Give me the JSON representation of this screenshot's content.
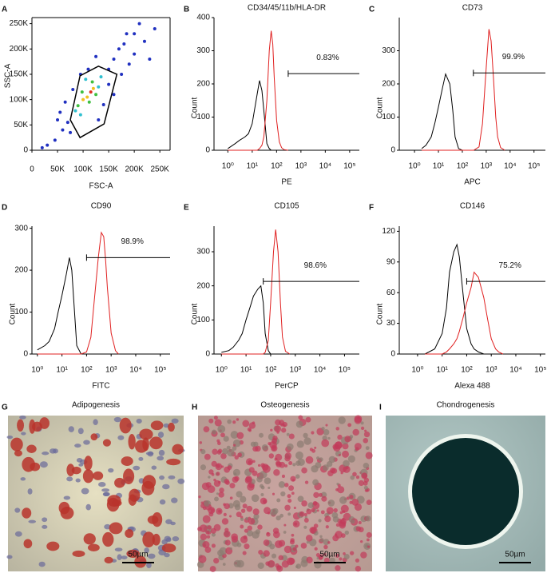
{
  "chart_data": [
    {
      "type": "scatter",
      "panel": "A",
      "xlabel": "FSC-A",
      "ylabel": "SSC-A",
      "xlim": [
        0,
        270000
      ],
      "ylim": [
        0,
        262000
      ],
      "xticks": [
        0,
        {
          "value": 50000,
          "label": "50K"
        },
        {
          "value": 100000,
          "label": "100K"
        },
        {
          "value": 150000,
          "label": "150K"
        },
        {
          "value": 200000,
          "label": "200K"
        },
        {
          "value": 250000,
          "label": "250K"
        }
      ],
      "yticks": [
        0,
        {
          "value": 50000,
          "label": "50K"
        },
        {
          "value": 100000,
          "label": "100K"
        },
        {
          "value": 150000,
          "label": "150K"
        },
        {
          "value": 200000,
          "label": "200K"
        },
        {
          "value": 250000,
          "label": "250K"
        }
      ],
      "x": [
        115000,
        108000,
        120000,
        100000,
        112000,
        125000,
        98000,
        118000,
        90000,
        130000,
        85000,
        105000,
        95000,
        135000,
        60000,
        45000,
        30000,
        20000,
        70000,
        150000,
        160000,
        170000,
        180000,
        200000,
        210000,
        190000,
        140000,
        80000,
        65000,
        150000,
        175000,
        200000,
        220000,
        240000,
        50000,
        110000,
        125000,
        160000,
        130000,
        75000,
        230000,
        55000,
        185000,
        95000
      ],
      "y": [
        115000,
        105000,
        122000,
        100000,
        95000,
        110000,
        115000,
        135000,
        88000,
        125000,
        78000,
        140000,
        70000,
        145000,
        40000,
        20000,
        10000,
        5000,
        55000,
        160000,
        180000,
        200000,
        210000,
        230000,
        250000,
        170000,
        90000,
        120000,
        95000,
        130000,
        150000,
        190000,
        215000,
        240000,
        60000,
        160000,
        185000,
        110000,
        60000,
        35000,
        180000,
        75000,
        230000,
        150000
      ],
      "point_colors": [
        "#e03020",
        "#f0c020",
        "#f0c020",
        "#f0c020",
        "#40c040",
        "#40c040",
        "#40c040",
        "#40c040",
        "#40c040",
        "#30c0d0",
        "#30c0d0",
        "#30c0d0",
        "#30c0d0",
        "#30c0d0",
        "#2030c0",
        "#2030c0",
        "#2030c0",
        "#2030c0",
        "#2030c0",
        "#2030c0",
        "#2030c0",
        "#2030c0",
        "#2030c0",
        "#2030c0",
        "#2030c0",
        "#2030c0",
        "#2030c0",
        "#2030c0",
        "#2030c0",
        "#2030c0",
        "#2030c0",
        "#2030c0",
        "#2030c0",
        "#2030c0",
        "#2030c0",
        "#2030c0",
        "#2030c0",
        "#2030c0",
        "#2030c0",
        "#2030c0",
        "#2030c0",
        "#2030c0",
        "#2030c0",
        "#2030c0"
      ],
      "gate": {
        "x": [
          75000,
          94000,
          130000,
          166000,
          141000,
          94000
        ],
        "y": [
          60000,
          147000,
          166000,
          150000,
          52000,
          25000
        ]
      }
    },
    {
      "type": "line",
      "panel": "B",
      "title": "CD34/45/11b/HLA-DR",
      "xlabel": "PE",
      "ylabel": "Count",
      "log_x": true,
      "xlim": [
        0.27,
        250000
      ],
      "ylim": [
        0,
        400
      ],
      "yticks": [
        0,
        100,
        200,
        300,
        400
      ],
      "xticks": [
        {
          "value": 1,
          "label": "10⁰"
        },
        {
          "value": 10,
          "label": "10¹"
        },
        {
          "value": 100,
          "label": "10²"
        },
        {
          "value": 1000,
          "label": "10³"
        },
        {
          "value": 10000,
          "label": "10⁴"
        },
        {
          "value": 100000,
          "label": "10⁵"
        }
      ],
      "x": [
        1,
        2,
        3,
        5,
        7,
        10,
        13,
        16,
        20,
        25,
        30,
        40,
        50,
        60,
        70,
        80,
        100,
        130,
        160,
        200,
        300
      ],
      "series": [
        {
          "color": "#000000",
          "values": [
            5,
            20,
            30,
            40,
            50,
            80,
            130,
            170,
            210,
            180,
            120,
            20,
            5,
            0,
            0,
            0,
            0,
            0,
            0,
            0,
            0
          ]
        },
        {
          "color": "#e02020",
          "values": [
            0,
            0,
            0,
            0,
            0,
            0,
            0,
            0,
            5,
            15,
            40,
            150,
            300,
            360,
            320,
            220,
            90,
            25,
            8,
            2,
            0
          ]
        }
      ],
      "gate_start": 300,
      "gate_y": 231,
      "gate_label": "0.83%"
    },
    {
      "type": "line",
      "panel": "C",
      "title": "CD73",
      "xlabel": "APC",
      "ylabel": "Count",
      "log_x": true,
      "xlim": [
        0.23,
        300000
      ],
      "ylim": [
        0,
        400
      ],
      "yticks": [
        0,
        100,
        200,
        300
      ],
      "xticks": [
        {
          "value": 1,
          "label": "10⁰"
        },
        {
          "value": 10,
          "label": "10¹"
        },
        {
          "value": 100,
          "label": "10²"
        },
        {
          "value": 1000,
          "label": "10³"
        },
        {
          "value": 10000,
          "label": "10⁴"
        },
        {
          "value": 100000,
          "label": "10⁵"
        }
      ],
      "x": [
        2,
        3,
        5,
        7,
        10,
        15,
        20,
        30,
        40,
        50,
        70,
        100,
        300,
        500,
        700,
        1000,
        1300,
        1600,
        2000,
        2500,
        3000,
        4000,
        6000
      ],
      "series": [
        {
          "color": "#000000",
          "values": [
            5,
            15,
            40,
            80,
            130,
            190,
            230,
            200,
            120,
            40,
            5,
            0,
            0,
            0,
            0,
            0,
            0,
            0,
            0,
            0,
            0,
            0,
            0
          ]
        },
        {
          "color": "#e02020",
          "values": [
            0,
            0,
            0,
            0,
            0,
            0,
            0,
            0,
            0,
            0,
            0,
            0,
            0,
            10,
            80,
            250,
            365,
            330,
            220,
            100,
            40,
            8,
            0
          ]
        }
      ],
      "gate_start": 290,
      "gate_y": 233,
      "gate_label": "99.9%"
    },
    {
      "type": "line",
      "panel": "D",
      "title": "CD90",
      "xlabel": "FITC",
      "ylabel": "Count",
      "log_x": true,
      "xlim": [
        0.6,
        250000
      ],
      "ylim": [
        0,
        305
      ],
      "yticks": [
        0,
        100,
        200,
        300
      ],
      "xticks": [
        {
          "value": 1,
          "label": "10⁰"
        },
        {
          "value": 10,
          "label": "10¹"
        },
        {
          "value": 100,
          "label": "10²"
        },
        {
          "value": 1000,
          "label": "10³"
        },
        {
          "value": 10000,
          "label": "10⁴"
        },
        {
          "value": 100000,
          "label": "10⁵"
        }
      ],
      "x": [
        1,
        2,
        3,
        5,
        7,
        10,
        15,
        20,
        25,
        30,
        40,
        60,
        100,
        150,
        200,
        300,
        400,
        500,
        600,
        700,
        1000,
        1500,
        2000
      ],
      "series": [
        {
          "color": "#000000",
          "values": [
            10,
            20,
            30,
            60,
            100,
            140,
            190,
            230,
            200,
            130,
            20,
            0,
            0,
            0,
            0,
            0,
            0,
            0,
            0,
            0,
            0,
            0,
            0
          ]
        },
        {
          "color": "#e02020",
          "values": [
            0,
            0,
            0,
            0,
            0,
            0,
            0,
            0,
            0,
            0,
            0,
            0,
            5,
            40,
            120,
            230,
            290,
            280,
            220,
            160,
            50,
            8,
            0
          ]
        }
      ],
      "gate_start": 100,
      "gate_y": 230,
      "gate_label": "98.9%"
    },
    {
      "type": "line",
      "panel": "E",
      "title": "CD105",
      "xlabel": "PerCP",
      "ylabel": "Count",
      "log_x": true,
      "xlim": [
        0.5,
        400000
      ],
      "ylim": [
        0,
        375
      ],
      "yticks": [
        0,
        100,
        200,
        300
      ],
      "xticks": [
        {
          "value": 1,
          "label": "10⁰"
        },
        {
          "value": 10,
          "label": "10¹"
        },
        {
          "value": 100,
          "label": "10²"
        },
        {
          "value": 1000,
          "label": "10³"
        },
        {
          "value": 10000,
          "label": "10⁴"
        },
        {
          "value": 100000,
          "label": "10⁵"
        }
      ],
      "x": [
        1,
        2,
        3,
        5,
        7,
        10,
        15,
        20,
        30,
        40,
        50,
        60,
        80,
        100,
        130,
        160,
        200,
        250,
        300,
        400,
        600
      ],
      "series": [
        {
          "color": "#000000",
          "values": [
            5,
            10,
            20,
            40,
            60,
            100,
            140,
            170,
            190,
            200,
            150,
            60,
            10,
            0,
            0,
            0,
            0,
            0,
            0,
            0,
            0
          ]
        },
        {
          "color": "#e02020",
          "values": [
            0,
            0,
            0,
            0,
            0,
            0,
            0,
            0,
            0,
            0,
            0,
            5,
            40,
            150,
            300,
            365,
            300,
            150,
            50,
            8,
            0
          ]
        }
      ],
      "gate_start": 50,
      "gate_y": 213,
      "gate_label": "98.6%"
    },
    {
      "type": "line",
      "panel": "F",
      "title": "CD146",
      "xlabel": "Alexa 488",
      "ylabel": "Count",
      "log_x": true,
      "xlim": [
        0.18,
        160000
      ],
      "ylim": [
        0,
        125
      ],
      "yticks": [
        0,
        30,
        60,
        90,
        120
      ],
      "xticks": [
        {
          "value": 1,
          "label": "10⁰"
        },
        {
          "value": 10,
          "label": "10¹"
        },
        {
          "value": 100,
          "label": "10²"
        },
        {
          "value": 1000,
          "label": "10³"
        },
        {
          "value": 10000,
          "label": "10⁴"
        },
        {
          "value": 100000,
          "label": "10⁵"
        }
      ],
      "x": [
        2,
        5,
        10,
        15,
        20,
        30,
        40,
        50,
        70,
        100,
        150,
        200,
        300,
        500,
        700,
        1000,
        1500,
        2000,
        3000
      ],
      "series": [
        {
          "color": "#000000",
          "values": [
            0,
            5,
            20,
            45,
            80,
            100,
            107,
            95,
            60,
            25,
            10,
            5,
            2,
            0,
            0,
            0,
            0,
            0,
            0
          ]
        },
        {
          "color": "#e02020",
          "values": [
            0,
            0,
            0,
            2,
            5,
            10,
            15,
            22,
            35,
            50,
            65,
            80,
            75,
            55,
            35,
            15,
            5,
            2,
            0
          ]
        }
      ],
      "gate_start": 100,
      "gate_y": 71,
      "gate_label": "75.2%"
    }
  ],
  "images": [
    {
      "panel": "G",
      "title": "Adipogenesis",
      "scale_label": "50µm"
    },
    {
      "panel": "H",
      "title": "Osteogenesis",
      "scale_label": "50µm"
    },
    {
      "panel": "I",
      "title": "Chondrogenesis",
      "scale_label": "50µm"
    }
  ]
}
